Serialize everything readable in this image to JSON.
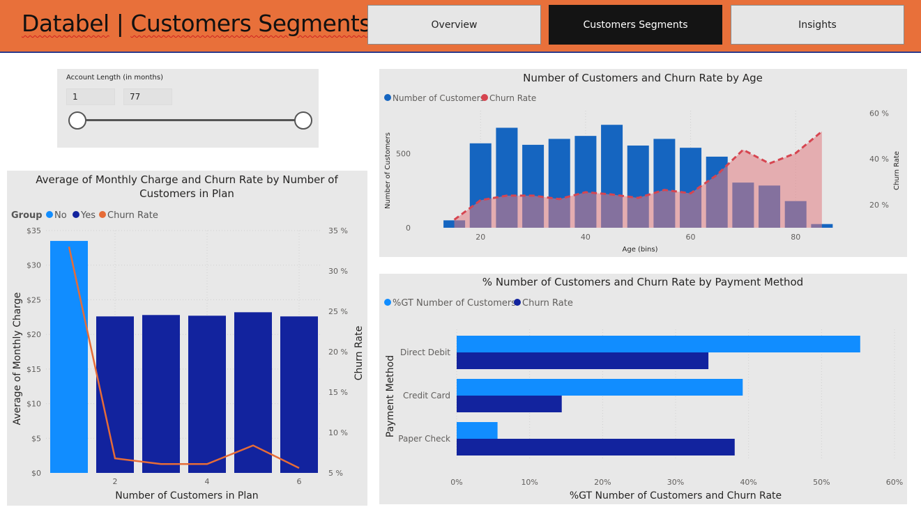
{
  "header": {
    "title_left": "Databel",
    "title_sep": " | ",
    "title_right": "Customers Segments",
    "nav": [
      "Overview",
      "Customers Segments",
      "Insights"
    ],
    "active_index": 1
  },
  "slicer": {
    "label": "Account Length (in months)",
    "min_value": "1",
    "max_value": "77"
  },
  "colors": {
    "no": "#118dff",
    "yes": "#12239e",
    "churn_orange": "#e66c37",
    "age_bar": "#1565c0",
    "age_churn": "#d64550",
    "accent_header": "#e8703a"
  },
  "chart_data": [
    {
      "type": "bar",
      "title_line1": "Average of Monthly Charge and Churn Rate by Number of",
      "title_line2": "Customers in Plan",
      "legend_title": "Group",
      "legend": [
        "No",
        "Yes",
        "Churn Rate"
      ],
      "xlabel": "Number of Customers in Plan",
      "ylabel": "Average of Monthly Charge",
      "y2label": "Churn Rate",
      "categories": [
        1,
        2,
        3,
        4,
        5,
        6
      ],
      "x_ticks": [
        "2",
        "4",
        "6"
      ],
      "group": [
        "No",
        "Yes",
        "Yes",
        "Yes",
        "Yes",
        "Yes"
      ],
      "values": [
        33.5,
        22.6,
        22.8,
        22.7,
        23.2,
        22.6
      ],
      "churn_rate": [
        33.0,
        6.8,
        6.1,
        6.1,
        8.4,
        5.6
      ],
      "ylim": [
        0,
        35
      ],
      "y_ticks": [
        "$0",
        "$5",
        "$10",
        "$15",
        "$20",
        "$25",
        "$30",
        "$35"
      ],
      "y2lim": [
        5,
        35
      ],
      "y2_ticks": [
        "5 %",
        "10 %",
        "15 %",
        "20 %",
        "25 %",
        "30 %",
        "35 %"
      ]
    },
    {
      "type": "bar",
      "title": "Number of Customers and Churn Rate by Age",
      "legend": [
        "Number of Customers",
        "Churn Rate"
      ],
      "xlabel": "Age (bins)",
      "ylabel": "Number of Customers",
      "y2label": "Churn Rate",
      "x": [
        15,
        20,
        25,
        30,
        35,
        40,
        45,
        50,
        55,
        60,
        65,
        70,
        75,
        80,
        85
      ],
      "values": [
        50,
        570,
        675,
        560,
        600,
        620,
        695,
        555,
        600,
        540,
        480,
        305,
        285,
        180,
        25
      ],
      "churn_rate": [
        13.5,
        22,
        24,
        24,
        22.5,
        25.5,
        24.5,
        23,
        26.5,
        25,
        33,
        44,
        38,
        42.5,
        52
      ],
      "x_ticks": [
        "20",
        "40",
        "60",
        "80"
      ],
      "xlim": [
        12,
        89
      ],
      "ylim": [
        0,
        790
      ],
      "y_ticks": [
        "0",
        "500"
      ],
      "y2lim": [
        10,
        61
      ],
      "y2_ticks": [
        "20 %",
        "40 %",
        "60 %"
      ]
    },
    {
      "type": "bar",
      "orientation": "horizontal",
      "title": "% Number of Customers and Churn Rate by Payment Method",
      "legend": [
        "%GT Number of Customers",
        "Churn Rate"
      ],
      "xlabel": "%GT Number of Customers and Churn Rate",
      "ylabel": "Payment Method",
      "categories": [
        "Direct Debit",
        "Credit Card",
        "Paper Check"
      ],
      "series": [
        {
          "name": "%GT Number of Customers",
          "values": [
            55.3,
            39.2,
            5.6
          ]
        },
        {
          "name": "Churn Rate",
          "values": [
            34.5,
            14.4,
            38.1
          ]
        }
      ],
      "xlim": [
        0,
        60
      ],
      "x_ticks": [
        "0%",
        "10%",
        "20%",
        "30%",
        "40%",
        "50%",
        "60%"
      ]
    }
  ]
}
